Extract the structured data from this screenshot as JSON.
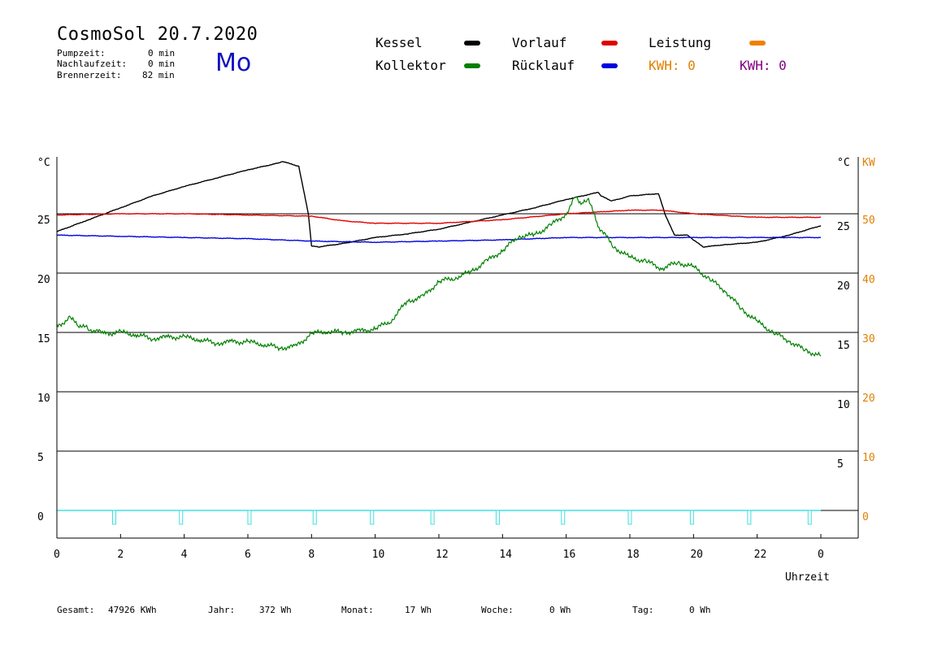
{
  "header": {
    "title": "CosmoSol 20.7.2020",
    "day": "Mo",
    "stats": [
      {
        "label": "Pumpzeit:",
        "value": "0 min"
      },
      {
        "label": "Nachlaufzeit:",
        "value": "0 min"
      },
      {
        "label": "Brennerzeit:",
        "value": "82 min"
      }
    ]
  },
  "legend": {
    "kessel": {
      "label": "Kessel",
      "color": "#000000"
    },
    "kollektor": {
      "label": "Kollektor",
      "color": "#008000"
    },
    "vorlauf": {
      "label": "Vorlauf",
      "color": "#e00000"
    },
    "ruecklauf": {
      "label": "Rücklauf",
      "color": "#0000e0"
    },
    "leistung": {
      "label": "Leistung",
      "color": "#f08000"
    },
    "kwh1": {
      "text": "KWH: 0",
      "color": "#e08000"
    },
    "kwh2": {
      "text": "KWH: 0",
      "color": "#800080"
    }
  },
  "footer": {
    "gesamt": {
      "label": "Gesamt:",
      "value": "47926 KWh"
    },
    "jahr": {
      "label": "Jahr:",
      "value": "372 Wh"
    },
    "monat": {
      "label": "Monat:",
      "value": "17 Wh"
    },
    "woche": {
      "label": "Woche:",
      "value": "0 Wh"
    },
    "tag": {
      "label": "Tag:",
      "value": "0 Wh"
    }
  },
  "chart_data": {
    "type": "line",
    "xlabel": "Uhrzeit",
    "ylabel_left": "°C",
    "ylabel_right_temp": "°C",
    "ylabel_right_power": "KW",
    "xlim": [
      0,
      24
    ],
    "ylim": [
      -3,
      30
    ],
    "x_ticks": [
      "0",
      "2",
      "4",
      "6",
      "8",
      "10",
      "12",
      "14",
      "16",
      "18",
      "20",
      "22",
      "0"
    ],
    "y_ticks_left": [
      "0",
      "5",
      "10",
      "15",
      "20",
      "25"
    ],
    "y_ticks_right_temp": [
      "5",
      "10",
      "15",
      "20",
      "25"
    ],
    "y_ticks_right_power": [
      "0",
      "10",
      "20",
      "30",
      "40",
      "50"
    ],
    "y_tick_values": [
      0,
      5,
      10,
      15,
      20,
      25
    ],
    "y_tick_values_right_temp": [
      5,
      10,
      15,
      20,
      25
    ],
    "power_scale": 2,
    "power_color": "#e08000",
    "pump_color": "#40e0e0",
    "series": [
      {
        "name": "Kessel",
        "color": "#000000",
        "x": [
          0,
          1,
          2,
          3,
          4,
          5,
          6,
          7,
          7.1,
          7.6,
          7.75,
          7.9,
          8.0,
          8.2,
          9,
          10,
          11,
          12,
          13,
          14,
          15,
          16,
          17,
          17.1,
          17.4,
          17.6,
          18,
          18.9,
          19.1,
          19.4,
          19.8,
          20,
          20.3,
          21,
          22,
          23,
          24
        ],
        "y": [
          23.5,
          24.5,
          25.5,
          26.5,
          27.3,
          28.0,
          28.7,
          29.3,
          29.4,
          29.0,
          27.0,
          25.0,
          22.3,
          22.2,
          22.5,
          23.0,
          23.3,
          23.7,
          24.3,
          24.9,
          25.5,
          26.2,
          26.8,
          26.5,
          26.1,
          26.2,
          26.5,
          26.7,
          25.0,
          23.2,
          23.2,
          22.8,
          22.2,
          22.4,
          22.6,
          23.2,
          24.0
        ]
      },
      {
        "name": "Vorlauf",
        "color": "#e00000",
        "x": [
          0,
          2,
          4,
          6,
          8,
          9,
          10,
          12,
          14,
          16,
          18,
          19,
          20,
          22,
          24
        ],
        "y": [
          24.9,
          25.0,
          25.0,
          24.9,
          24.8,
          24.4,
          24.2,
          24.2,
          24.5,
          25.0,
          25.3,
          25.3,
          25.0,
          24.7,
          24.7
        ]
      },
      {
        "name": "Rücklauf",
        "color": "#0000e0",
        "x": [
          0,
          2,
          4,
          6,
          8,
          10,
          12,
          14,
          16,
          18,
          20,
          22,
          24
        ],
        "y": [
          23.2,
          23.1,
          23.0,
          22.9,
          22.7,
          22.6,
          22.7,
          22.8,
          23.0,
          23.0,
          23.0,
          23.0,
          23.0
        ]
      },
      {
        "name": "Kollektor",
        "color": "#008000",
        "x": [
          0,
          0.4,
          0.7,
          1,
          1.5,
          2,
          2.5,
          3,
          3.5,
          4,
          4.5,
          5,
          5.5,
          6,
          6.5,
          7,
          7.5,
          8,
          8.5,
          9,
          9.5,
          10,
          10.5,
          11,
          11.5,
          12,
          12.5,
          13,
          13.5,
          14,
          14.5,
          15,
          15.5,
          16,
          16.3,
          16.5,
          16.7,
          17,
          17.5,
          18,
          18.5,
          19,
          19.5,
          20,
          20.5,
          21,
          21.5,
          22,
          22.5,
          23,
          23.5,
          24
        ],
        "y": [
          15.5,
          16.2,
          15.6,
          15.3,
          14.9,
          15.0,
          14.8,
          14.5,
          14.6,
          14.6,
          14.4,
          14.1,
          14.2,
          14.2,
          14.0,
          13.7,
          13.8,
          14.9,
          15.1,
          15.0,
          15.1,
          15.3,
          16.0,
          17.6,
          18.0,
          19.3,
          19.6,
          20.1,
          21.0,
          21.9,
          23.1,
          23.2,
          24.0,
          25.0,
          26.5,
          25.8,
          26.2,
          24.0,
          22.2,
          21.3,
          21.0,
          20.4,
          20.9,
          20.5,
          19.5,
          18.5,
          17.0,
          15.9,
          15.0,
          14.3,
          13.5,
          13.0
        ]
      }
    ],
    "pump_markers_x": [
      1.8,
      3.9,
      6.05,
      8.1,
      9.9,
      11.8,
      13.85,
      15.9,
      18.0,
      19.95,
      21.75,
      23.65
    ]
  }
}
